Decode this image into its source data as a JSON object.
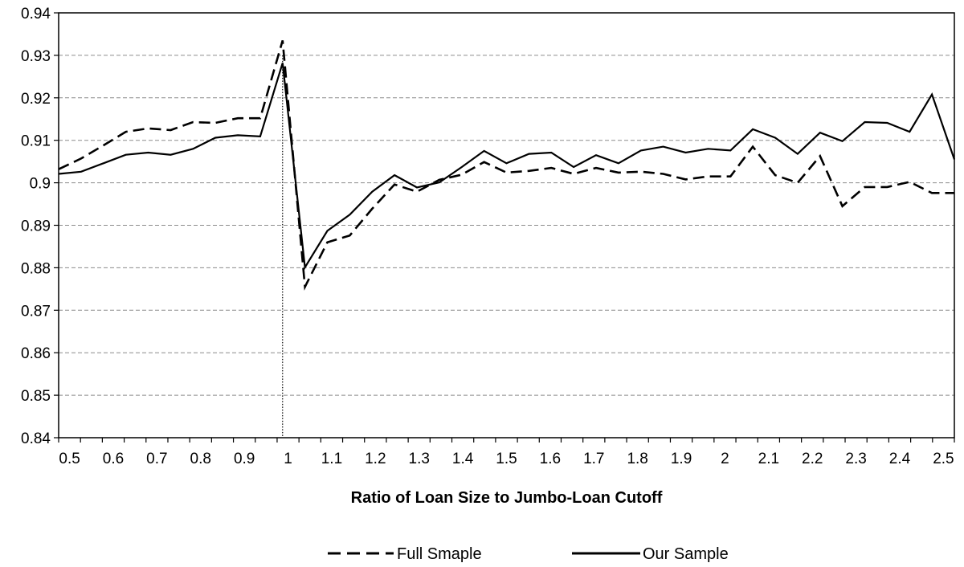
{
  "chart_data": {
    "type": "line",
    "title": "",
    "xlabel": "Ratio of Loan Size to Jumbo-Loan Cutoff",
    "ylabel": "",
    "xlim": [
      0.5,
      2.5
    ],
    "ylim": [
      0.84,
      0.94
    ],
    "y_ticks": [
      "0.84",
      "0.85",
      "0.86",
      "0.87",
      "0.88",
      "0.89",
      "0.9",
      "0.91",
      "0.92",
      "0.93",
      "0.94"
    ],
    "x_ticks": [
      "0.5",
      "0.6",
      "0.7",
      "0.8",
      "0.9",
      "1",
      "1.1",
      "1.2",
      "1.3",
      "1.4",
      "1.5",
      "1.6",
      "1.7",
      "1.8",
      "1.9",
      "2",
      "2.1",
      "2.2",
      "2.3",
      "2.4",
      "2.5"
    ],
    "grid": "horizontal dashed",
    "reference_line_x": 1,
    "legend_position": "bottom",
    "x": [
      0.5,
      0.55,
      0.6,
      0.65,
      0.7,
      0.75,
      0.8,
      0.85,
      0.9,
      0.95,
      1.0,
      1.05,
      1.1,
      1.15,
      1.2,
      1.25,
      1.3,
      1.35,
      1.4,
      1.45,
      1.5,
      1.55,
      1.6,
      1.65,
      1.7,
      1.75,
      1.8,
      1.85,
      1.9,
      1.95,
      2.0,
      2.05,
      2.1,
      2.15,
      2.2,
      2.25,
      2.3,
      2.35,
      2.4,
      2.45,
      2.5
    ],
    "series": [
      {
        "name": "Full Smaple",
        "style": "dashed",
        "color": "#000000",
        "values": [
          0.9032,
          0.9057,
          0.9088,
          0.912,
          0.9128,
          0.9124,
          0.9143,
          0.9141,
          0.9152,
          0.9152,
          0.9335,
          0.8755,
          0.886,
          0.8876,
          0.8939,
          0.8996,
          0.8979,
          0.9007,
          0.9019,
          0.9049,
          0.9024,
          0.9028,
          0.9035,
          0.9021,
          0.9035,
          0.9024,
          0.9026,
          0.9021,
          0.9008,
          0.9015,
          0.9015,
          0.9085,
          0.9018,
          0.9,
          0.9063,
          0.8945,
          0.899,
          0.899,
          0.9002,
          0.8976,
          0.8976
        ]
      },
      {
        "name": "Our Sample",
        "style": "solid",
        "color": "#000000",
        "values": [
          0.9021,
          0.9026,
          0.9046,
          0.9066,
          0.9071,
          0.9066,
          0.908,
          0.9106,
          0.9112,
          0.9109,
          0.9282,
          0.8801,
          0.8887,
          0.8925,
          0.8979,
          0.9018,
          0.8989,
          0.9001,
          0.9037,
          0.9075,
          0.9046,
          0.9068,
          0.9071,
          0.9037,
          0.9065,
          0.9046,
          0.9076,
          0.9085,
          0.9071,
          0.908,
          0.9076,
          0.9126,
          0.9106,
          0.9068,
          0.9118,
          0.9098,
          0.9143,
          0.9141,
          0.912,
          0.9208,
          0.9055
        ]
      }
    ]
  }
}
